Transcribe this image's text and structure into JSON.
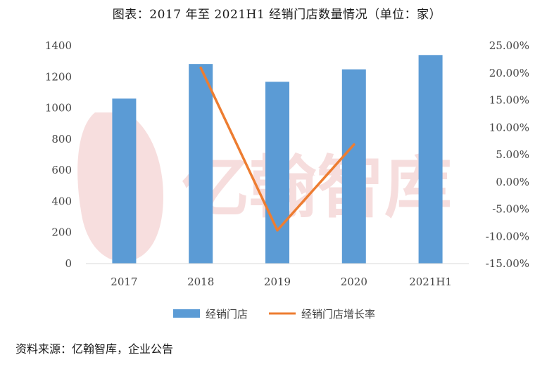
{
  "title": "图表：2017 年至 2021H1 经销门店数量情况（单位：家）",
  "source": "资料来源：亿翰智库，企业公告",
  "watermark": "亿翰智库",
  "chart_data": {
    "type": "bar",
    "categories": [
      "2017",
      "2018",
      "2019",
      "2020",
      "2021H1"
    ],
    "series": [
      {
        "name": "经销门店",
        "type": "bar",
        "axis": "left",
        "values": [
          1060,
          1282,
          1168,
          1248,
          1340
        ],
        "color": "#5b9bd5"
      },
      {
        "name": "经销门店增长率",
        "type": "line",
        "axis": "right",
        "values": [
          null,
          0.2094,
          -0.0889,
          0.0685,
          null
        ],
        "color": "#ed7d31"
      }
    ],
    "y_left": {
      "min": 0,
      "max": 1400,
      "step": 200,
      "ticks": [
        "0",
        "200",
        "400",
        "600",
        "800",
        "1000",
        "1200",
        "1400"
      ]
    },
    "y_right": {
      "min": -0.15,
      "max": 0.25,
      "step": 0.05,
      "ticks": [
        "-15.00%",
        "-10.00%",
        "-5.00%",
        "0.00%",
        "5.00%",
        "10.00%",
        "15.00%",
        "20.00%",
        "25.00%"
      ]
    },
    "legend": "bottom",
    "grid": false
  }
}
